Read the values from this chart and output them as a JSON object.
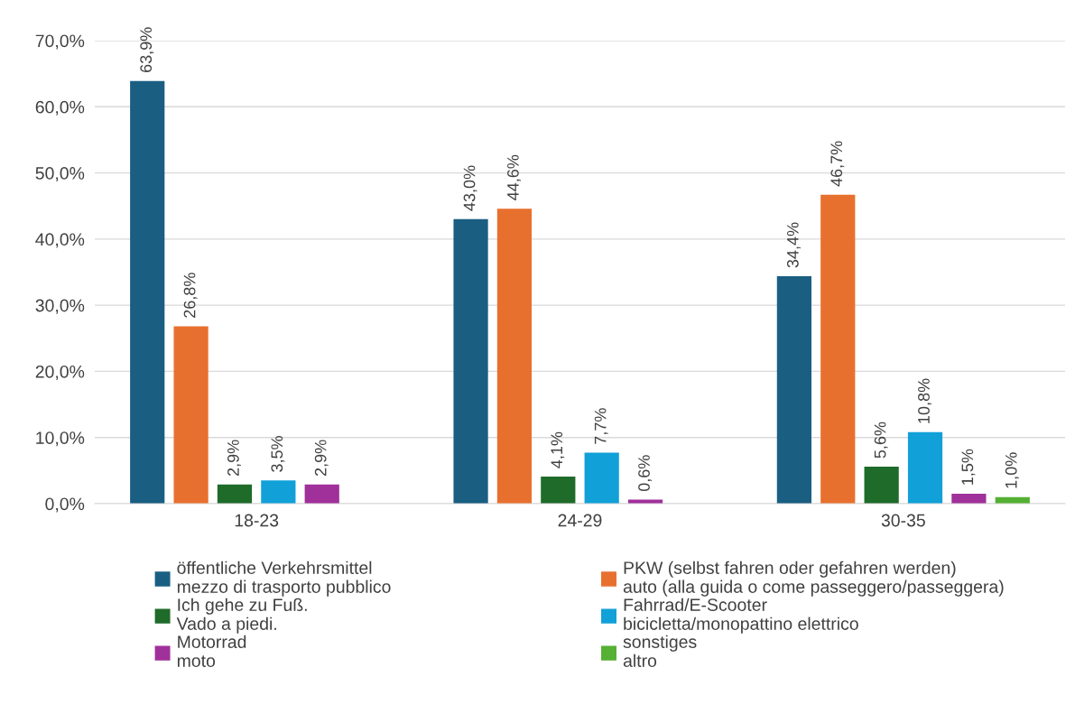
{
  "chart_data": {
    "type": "bar",
    "categories": [
      "18-23",
      "24-29",
      "30-35"
    ],
    "ylim": [
      0,
      70
    ],
    "yticks": [
      {
        "value": 0,
        "label": "0,0%"
      },
      {
        "value": 10,
        "label": "10,0%"
      },
      {
        "value": 20,
        "label": "20,0%"
      },
      {
        "value": 30,
        "label": "30,0%"
      },
      {
        "value": 40,
        "label": "40,0%"
      },
      {
        "value": 50,
        "label": "50,0%"
      },
      {
        "value": 60,
        "label": "60,0%"
      },
      {
        "value": 70,
        "label": "70,0%"
      }
    ],
    "grid": "y",
    "legend": "bottom",
    "series": [
      {
        "name": "öffentliche Verkehrsmittel\nmezzo di trasporto pubblico",
        "color": "#1a5e82",
        "values": [
          63.9,
          43.0,
          34.4
        ],
        "value_labels": [
          "63,9%",
          "43,0%",
          "34,4%"
        ]
      },
      {
        "name": "PKW (selbst fahren oder gefahren werden)\nauto (alla guida o come passeggero/passeggera)",
        "color": "#e8702f",
        "values": [
          26.8,
          44.6,
          46.7
        ],
        "value_labels": [
          "26,8%",
          "44,6%",
          "46,7%"
        ]
      },
      {
        "name": "Ich gehe zu Fuß.\nVado a piedi.",
        "color": "#1e6b2a",
        "values": [
          2.9,
          4.1,
          5.6
        ],
        "value_labels": [
          "2,9%",
          "4,1%",
          "5,6%"
        ]
      },
      {
        "name": "Fahrrad/E-Scooter\nbicicletta/monopattino elettrico",
        "color": "#11a0d8",
        "values": [
          3.5,
          7.7,
          10.8
        ],
        "value_labels": [
          "3,5%",
          "7,7%",
          "10,8%"
        ]
      },
      {
        "name": "Motorrad\nmoto",
        "color": "#a0309a",
        "values": [
          2.9,
          0.6,
          1.5
        ],
        "value_labels": [
          "2,9%",
          "0,6%",
          "1,5%"
        ]
      },
      {
        "name": "sonstiges\naltro",
        "color": "#55b034",
        "values": [
          null,
          null,
          1.0
        ],
        "value_labels": [
          null,
          null,
          "1,0%"
        ]
      }
    ]
  }
}
